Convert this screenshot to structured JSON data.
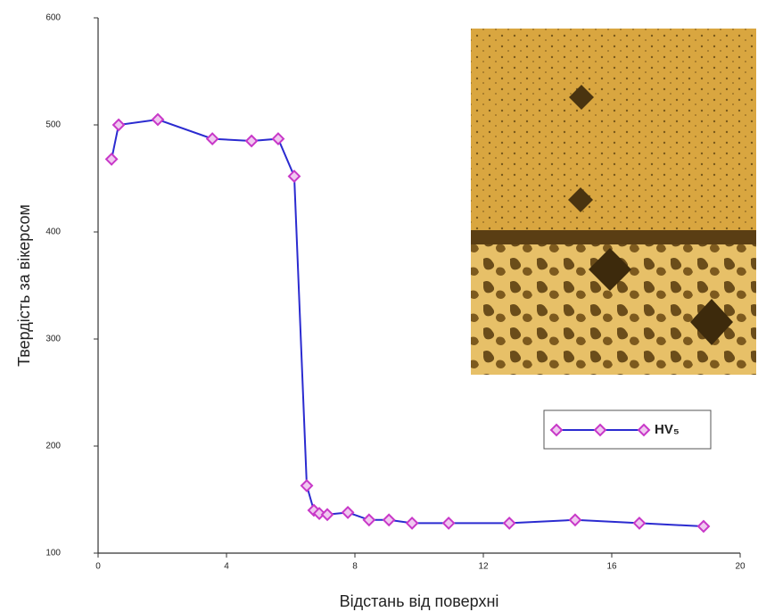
{
  "chart_data": {
    "type": "line",
    "x_label": "Відстань від поверхні",
    "y_label": "Твердість за вікерсом",
    "series": [
      {
        "name": "HV₅",
        "color": "#2b2bd0",
        "marker_color": "#c838c8",
        "x": [
          0.42,
          0.64,
          1.86,
          3.56,
          4.78,
          5.61,
          6.11,
          6.5,
          6.72,
          6.89,
          7.14,
          7.78,
          8.44,
          9.06,
          9.78,
          10.92,
          12.81,
          14.86,
          16.86,
          18.86
        ],
        "values": [
          468,
          500,
          505,
          487,
          485,
          487,
          452,
          163,
          140,
          137,
          136,
          138,
          131,
          131,
          128,
          128,
          128,
          131,
          128,
          125
        ]
      }
    ],
    "xlim": [
      0,
      20
    ],
    "xticks": [
      0,
      4,
      8,
      12,
      16,
      20
    ],
    "ylim": [
      100,
      600
    ],
    "yticks": [
      100,
      200,
      300,
      400,
      500,
      600
    ],
    "legend": "right"
  }
}
